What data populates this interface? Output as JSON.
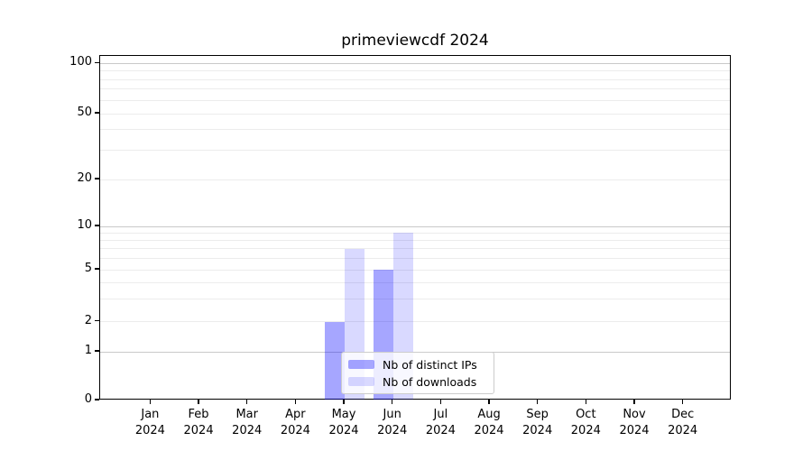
{
  "title": "primeviewcdf 2024",
  "chart_data": {
    "type": "bar",
    "title": "primeviewcdf 2024",
    "categories": [
      "Jan",
      "Feb",
      "Mar",
      "Apr",
      "May",
      "Jun",
      "Jul",
      "Aug",
      "Sep",
      "Oct",
      "Nov",
      "Dec"
    ],
    "category_year": "2024",
    "series": [
      {
        "name": "Nb of distinct IPs",
        "color": "rgba(0,0,255,0.35)",
        "values": [
          0,
          0,
          0,
          0,
          2,
          5,
          0,
          0,
          0,
          0,
          0,
          0
        ]
      },
      {
        "name": "Nb of downloads",
        "color": "rgba(0,0,255,0.15)",
        "values": [
          0,
          0,
          0,
          0,
          7,
          9,
          0,
          0,
          0,
          0,
          0,
          0
        ]
      }
    ],
    "y_axis": {
      "scale": "asinh-like (linear 0-1, log-like above)",
      "ticks": [
        0,
        1,
        2,
        5,
        10,
        20,
        50,
        100
      ],
      "major_gridlines": [
        1,
        10,
        100
      ],
      "minor_gridlines": [
        2,
        3,
        4,
        5,
        6,
        7,
        8,
        9,
        20,
        30,
        40,
        50,
        60,
        70,
        80,
        90
      ],
      "ylim": [
        0,
        130
      ]
    },
    "xlabel": "",
    "ylabel": "",
    "grid": true,
    "legend": {
      "position": "lower center",
      "entries": [
        "Nb of distinct IPs",
        "Nb of downloads"
      ]
    }
  },
  "colors": {
    "bar_distinct_ips": "rgba(0,0,255,0.35)",
    "bar_downloads": "rgba(0,0,255,0.15)",
    "grid_major": "#c9c9c9",
    "grid_minor": "#ececec",
    "spine": "#000000",
    "legend_border": "#cccccc"
  }
}
